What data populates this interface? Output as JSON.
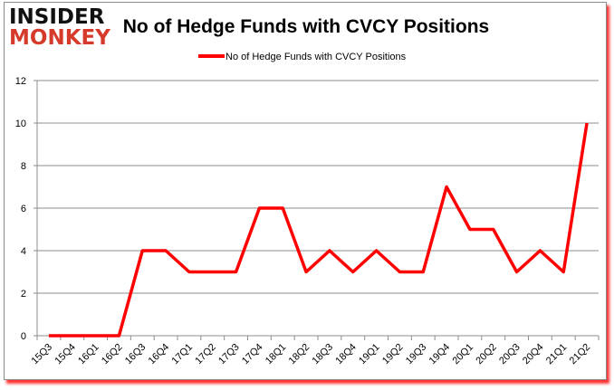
{
  "logo": {
    "line1": "INSIDER",
    "line2": "MONKEY"
  },
  "chart_data": {
    "type": "line",
    "title": "No of Hedge Funds with CVCY Positions",
    "xlabel": "",
    "ylabel": "",
    "ylim": [
      0,
      12
    ],
    "yticks": [
      0,
      2,
      4,
      6,
      8,
      10,
      12
    ],
    "grid": true,
    "legend_position": "top",
    "categories": [
      "15Q3",
      "15Q4",
      "16Q1",
      "16Q2",
      "16Q3",
      "16Q4",
      "17Q1",
      "17Q2",
      "17Q3",
      "17Q4",
      "18Q1",
      "18Q2",
      "18Q3",
      "18Q4",
      "19Q1",
      "19Q2",
      "19Q3",
      "19Q4",
      "20Q1",
      "20Q2",
      "20Q3",
      "20Q4",
      "21Q1",
      "21Q2"
    ],
    "series": [
      {
        "name": "No of Hedge Funds with CVCY Positions",
        "color": "#ff0000",
        "values": [
          0,
          0,
          0,
          0,
          4,
          4,
          3,
          3,
          3,
          6,
          6,
          3,
          4,
          3,
          4,
          3,
          3,
          7,
          5,
          5,
          3,
          4,
          3,
          10
        ]
      }
    ]
  }
}
